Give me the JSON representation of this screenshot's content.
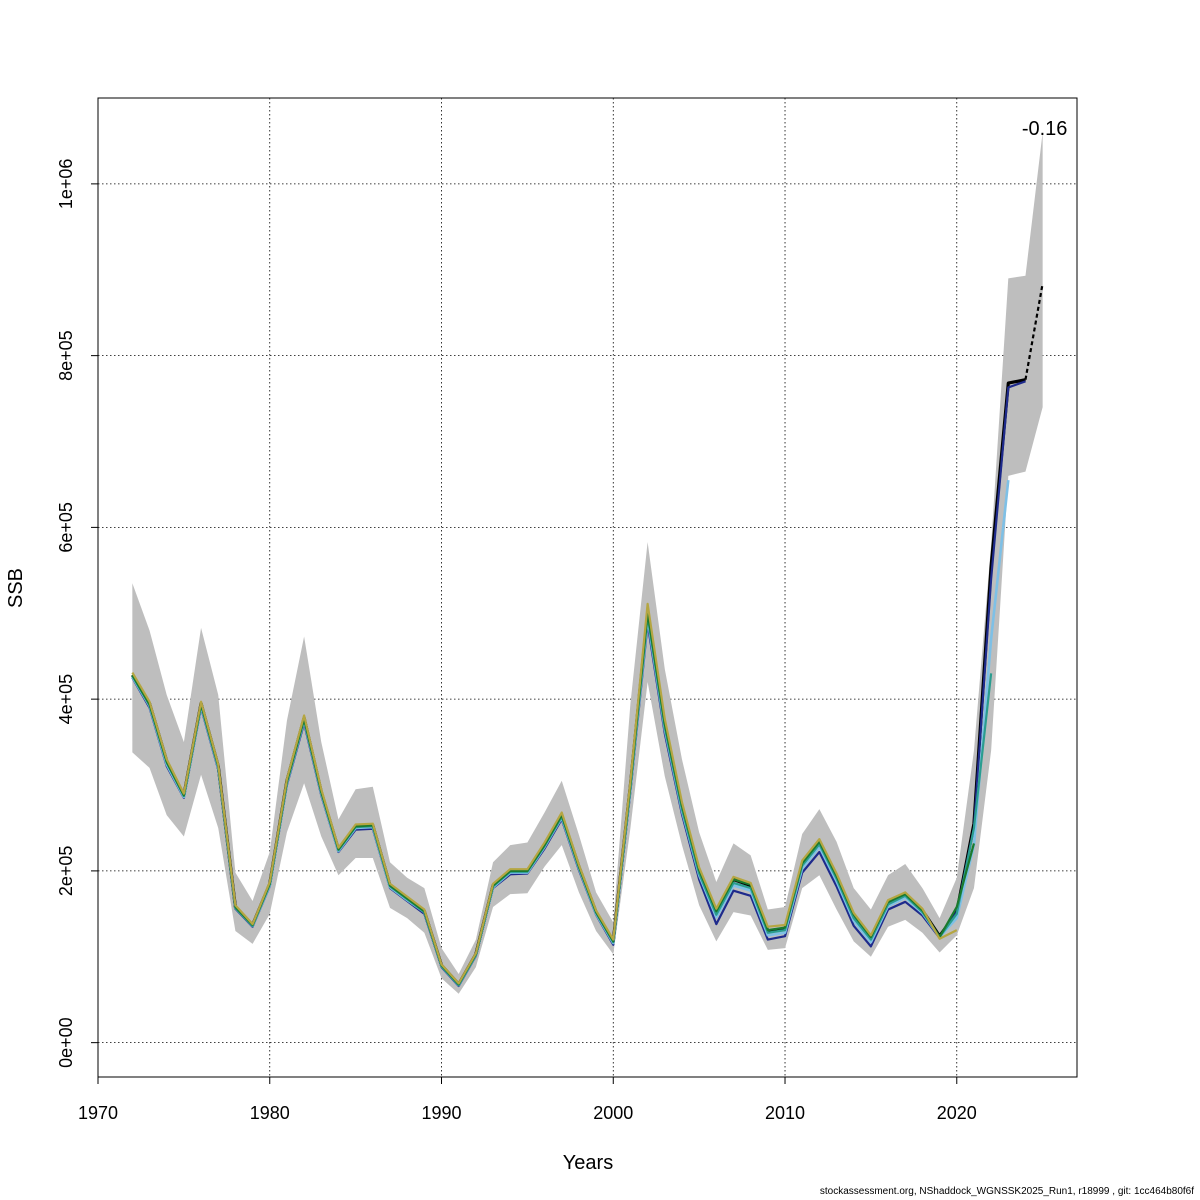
{
  "footer": "stockassessment.org, NShaddock_WGNSSK2025_Run1, r18999 , git: 1cc464b80f6f",
  "chart_data": {
    "type": "line",
    "xlabel": "Years",
    "ylabel": "SSB",
    "xlim": [
      1970,
      2027
    ],
    "ylim": [
      -40000,
      1100000
    ],
    "x_ticks": [
      1970,
      1980,
      1990,
      2000,
      2010,
      2020
    ],
    "y_ticks": [
      0,
      200000,
      400000,
      600000,
      800000,
      1000000
    ],
    "y_tick_labels": [
      "0e+00",
      "2e+05",
      "4e+05",
      "6e+05",
      "8e+05",
      "1e+06"
    ],
    "grid": true,
    "annotation": {
      "text": "-0.16",
      "x": 2025,
      "y": 1065000
    },
    "band": {
      "color": "#bebebe",
      "x": [
        1972,
        1973,
        1974,
        1975,
        1976,
        1977,
        1978,
        1979,
        1980,
        1981,
        1982,
        1983,
        1984,
        1985,
        1986,
        1987,
        1988,
        1989,
        1990,
        1991,
        1992,
        1993,
        1994,
        1995,
        1996,
        1997,
        1998,
        1999,
        2000,
        2001,
        2002,
        2003,
        2004,
        2005,
        2006,
        2007,
        2008,
        2009,
        2010,
        2011,
        2012,
        2013,
        2014,
        2015,
        2016,
        2017,
        2018,
        2019,
        2020,
        2021,
        2022,
        2023,
        2024,
        2025
      ],
      "lower": [
        338000,
        320000,
        265000,
        240000,
        312000,
        250000,
        130000,
        115000,
        150000,
        245000,
        302000,
        240000,
        195000,
        215000,
        215000,
        157000,
        145000,
        128000,
        75000,
        57000,
        88000,
        158000,
        173000,
        174000,
        205000,
        230000,
        175000,
        130000,
        103000,
        250000,
        420000,
        310000,
        230000,
        160000,
        118000,
        152000,
        148000,
        108000,
        110000,
        180000,
        195000,
        155000,
        118000,
        100000,
        135000,
        143000,
        128000,
        105000,
        125000,
        180000,
        340000,
        660000,
        665000,
        740000
      ],
      "upper": [
        535000,
        480000,
        405000,
        350000,
        483000,
        405000,
        198000,
        165000,
        222000,
        375000,
        473000,
        350000,
        260000,
        295000,
        298000,
        210000,
        192000,
        180000,
        110000,
        80000,
        120000,
        210000,
        230000,
        233000,
        268000,
        305000,
        242000,
        175000,
        140000,
        395000,
        583000,
        435000,
        330000,
        245000,
        187000,
        232000,
        218000,
        155000,
        158000,
        243000,
        272000,
        234000,
        180000,
        155000,
        195000,
        208000,
        180000,
        145000,
        192000,
        340000,
        580000,
        890000,
        893000,
        1060000
      ]
    },
    "series": [
      {
        "color": "#000000",
        "width": 3.2,
        "x": [
          1972,
          1973,
          1974,
          1975,
          1976,
          1977,
          1978,
          1979,
          1980,
          1981,
          1982,
          1983,
          1984,
          1985,
          1986,
          1987,
          1988,
          1989,
          1990,
          1991,
          1992,
          1993,
          1994,
          1995,
          1996,
          1997,
          1998,
          1999,
          2000,
          2001,
          2002,
          2003,
          2004,
          2005,
          2006,
          2007,
          2008,
          2009,
          2010,
          2011,
          2012,
          2013,
          2014,
          2015,
          2016,
          2017,
          2018,
          2019,
          2020,
          2021,
          2022,
          2023,
          2024
        ],
        "values": [
          428000,
          395000,
          328000,
          288000,
          395000,
          322000,
          158000,
          137000,
          185000,
          305000,
          378000,
          292000,
          225000,
          252000,
          253000,
          183000,
          168000,
          153000,
          90000,
          68000,
          103000,
          183000,
          200000,
          200000,
          230000,
          265000,
          205000,
          152000,
          118000,
          300000,
          500000,
          370000,
          275000,
          200000,
          152000,
          190000,
          183000,
          130000,
          133000,
          208000,
          233000,
          193000,
          148000,
          122000,
          163000,
          173000,
          154000,
          124000,
          152000,
          255000,
          555000,
          768000,
          772000
        ]
      },
      {
        "color": "#000000",
        "width": 2.2,
        "dashed": true,
        "x": [
          2024,
          2025
        ],
        "values": [
          772000,
          884000
        ]
      },
      {
        "color": "#1e2a8c",
        "width": 2.2,
        "x": [
          1972,
          1973,
          1974,
          1975,
          1976,
          1977,
          1978,
          1979,
          1980,
          1981,
          1982,
          1983,
          1984,
          1985,
          1986,
          1987,
          1988,
          1989,
          1990,
          1991,
          1992,
          1993,
          1994,
          1995,
          1996,
          1997,
          1998,
          1999,
          2000,
          2001,
          2002,
          2003,
          2004,
          2005,
          2006,
          2007,
          2008,
          2009,
          2010,
          2011,
          2012,
          2013,
          2014,
          2015,
          2016,
          2017,
          2018,
          2019,
          2020,
          2021,
          2022,
          2023,
          2024
        ],
        "values": [
          425000,
          390000,
          322000,
          285000,
          390000,
          318000,
          156000,
          135000,
          182000,
          300000,
          372000,
          288000,
          222000,
          248000,
          249000,
          180000,
          165000,
          150000,
          88000,
          66000,
          101000,
          180000,
          196000,
          197000,
          226000,
          260000,
          201000,
          149000,
          114000,
          293000,
          488000,
          360000,
          266000,
          190000,
          138000,
          177000,
          171000,
          120000,
          124000,
          198000,
          222000,
          182000,
          136000,
          112000,
          155000,
          164000,
          148000,
          122000,
          152000,
          250000,
          540000,
          763000,
          770000
        ]
      },
      {
        "color": "#7ec0e6",
        "width": 2.6,
        "x": [
          1972,
          1973,
          1974,
          1975,
          1976,
          1977,
          1978,
          1979,
          1980,
          1981,
          1982,
          1983,
          1984,
          1985,
          1986,
          1987,
          1988,
          1989,
          1990,
          1991,
          1992,
          1993,
          1994,
          1995,
          1996,
          1997,
          1998,
          1999,
          2000,
          2001,
          2002,
          2003,
          2004,
          2005,
          2006,
          2007,
          2008,
          2009,
          2010,
          2011,
          2012,
          2013,
          2014,
          2015,
          2016,
          2017,
          2018,
          2019,
          2020,
          2021,
          2022,
          2023
        ],
        "values": [
          426000,
          392000,
          324000,
          286000,
          392000,
          320000,
          157000,
          136000,
          183000,
          302000,
          375000,
          290000,
          223000,
          250000,
          251000,
          181000,
          166000,
          152000,
          89000,
          67000,
          102000,
          181000,
          198000,
          198000,
          228000,
          262000,
          203000,
          150000,
          116000,
          296000,
          494000,
          365000,
          270000,
          195000,
          146000,
          183000,
          177000,
          125000,
          128000,
          203000,
          228000,
          188000,
          142000,
          117000,
          159000,
          169000,
          151000,
          123000,
          145000,
          230000,
          470000,
          655000
        ]
      },
      {
        "color": "#2a9d8f",
        "width": 2.2,
        "x": [
          1972,
          1973,
          1974,
          1975,
          1976,
          1977,
          1978,
          1979,
          1980,
          1981,
          1982,
          1983,
          1984,
          1985,
          1986,
          1987,
          1988,
          1989,
          1990,
          1991,
          1992,
          1993,
          1994,
          1995,
          1996,
          1997,
          1998,
          1999,
          2000,
          2001,
          2002,
          2003,
          2004,
          2005,
          2006,
          2007,
          2008,
          2009,
          2010,
          2011,
          2012,
          2013,
          2014,
          2015,
          2016,
          2017,
          2018,
          2019,
          2020,
          2021,
          2022
        ],
        "values": [
          427000,
          393000,
          326000,
          287000,
          393000,
          321000,
          157000,
          136000,
          184000,
          303000,
          376000,
          291000,
          224000,
          251000,
          252000,
          182000,
          167000,
          152000,
          89000,
          67000,
          102000,
          182000,
          199000,
          199000,
          229000,
          263000,
          204000,
          151000,
          117000,
          298000,
          497000,
          367000,
          272000,
          197000,
          149000,
          186000,
          180000,
          128000,
          131000,
          206000,
          231000,
          191000,
          145000,
          120000,
          161000,
          171000,
          152000,
          123000,
          150000,
          250000,
          430000
        ]
      },
      {
        "color": "#1a7a2e",
        "width": 2.2,
        "x": [
          1972,
          1973,
          1974,
          1975,
          1976,
          1977,
          1978,
          1979,
          1980,
          1981,
          1982,
          1983,
          1984,
          1985,
          1986,
          1987,
          1988,
          1989,
          1990,
          1991,
          1992,
          1993,
          1994,
          1995,
          1996,
          1997,
          1998,
          1999,
          2000,
          2001,
          2002,
          2003,
          2004,
          2005,
          2006,
          2007,
          2008,
          2009,
          2010,
          2011,
          2012,
          2013,
          2014,
          2015,
          2016,
          2017,
          2018,
          2019,
          2020,
          2021
        ],
        "values": [
          428000,
          394000,
          327000,
          288000,
          394000,
          322000,
          158000,
          137000,
          185000,
          304000,
          377000,
          292000,
          225000,
          252000,
          253000,
          183000,
          168000,
          153000,
          90000,
          68000,
          103000,
          183000,
          200000,
          200000,
          230000,
          265000,
          205000,
          152000,
          118000,
          300000,
          501000,
          371000,
          276000,
          201000,
          153000,
          190000,
          184000,
          131000,
          134000,
          209000,
          234000,
          194000,
          149000,
          123000,
          164000,
          173000,
          154000,
          123000,
          158000,
          232000
        ]
      },
      {
        "color": "#b5a642",
        "width": 2.2,
        "x": [
          1972,
          1973,
          1974,
          1975,
          1976,
          1977,
          1978,
          1979,
          1980,
          1981,
          1982,
          1983,
          1984,
          1985,
          1986,
          1987,
          1988,
          1989,
          1990,
          1991,
          1992,
          1993,
          1994,
          1995,
          1996,
          1997,
          1998,
          1999,
          2000,
          2001,
          2002,
          2003,
          2004,
          2005,
          2006,
          2007,
          2008,
          2009,
          2010,
          2011,
          2012,
          2013,
          2014,
          2015,
          2016,
          2017,
          2018,
          2019,
          2020
        ],
        "values": [
          431000,
          397000,
          330000,
          290000,
          397000,
          324000,
          160000,
          138000,
          187000,
          307000,
          381000,
          295000,
          227000,
          254000,
          255000,
          185000,
          170000,
          155000,
          91000,
          69000,
          104000,
          185000,
          202000,
          202000,
          233000,
          268000,
          207000,
          154000,
          120000,
          305000,
          511000,
          377000,
          280000,
          204000,
          156000,
          193000,
          186000,
          135000,
          137000,
          212000,
          237000,
          197000,
          151000,
          125000,
          166000,
          175000,
          156000,
          121000,
          131000
        ]
      }
    ]
  }
}
